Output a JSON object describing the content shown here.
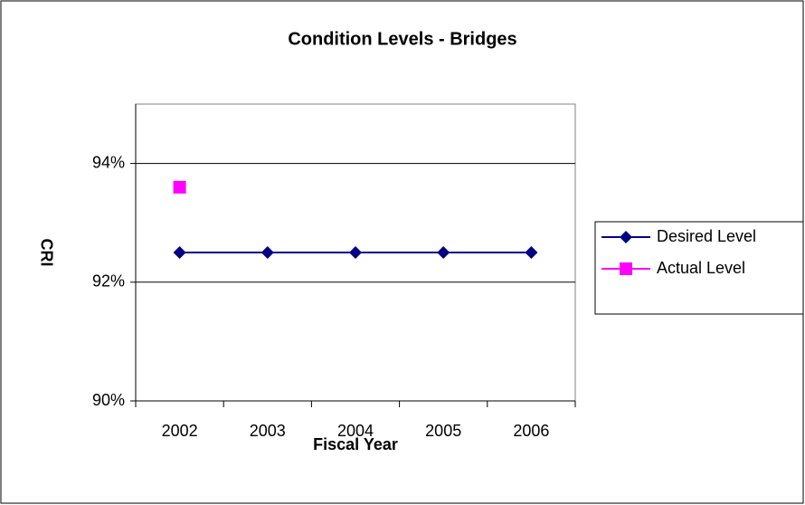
{
  "chart_data": {
    "type": "line",
    "title": "Condition Levels - Bridges",
    "x_label": "Fiscal Year",
    "y_label": "CRI",
    "categories": [
      "2002",
      "2003",
      "2004",
      "2005",
      "2006"
    ],
    "series": [
      {
        "name": "Desired Level",
        "color": "#000080",
        "marker": "diamond",
        "values": [
          92.5,
          92.5,
          92.5,
          92.5,
          92.5
        ]
      },
      {
        "name": "Actual Level",
        "color": "#ff00ff",
        "marker": "square",
        "values": [
          93.6,
          null,
          null,
          null,
          null
        ]
      }
    ],
    "ylim": [
      90,
      95
    ],
    "yticks": [
      {
        "value": 90,
        "label": "90%"
      },
      {
        "value": 92,
        "label": "92%"
      },
      {
        "value": 94,
        "label": "94%"
      }
    ],
    "grid": true,
    "legend": "right"
  }
}
